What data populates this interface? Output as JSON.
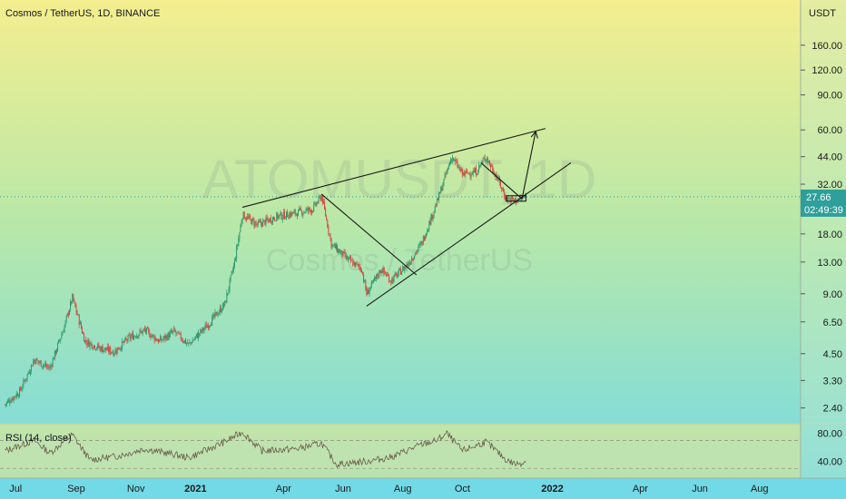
{
  "chart_data": {
    "type": "candlestick",
    "title": "Cosmos / TetherUS, 1D, BINANCE",
    "watermark": {
      "symbol": "ATOMUSDT, 1D",
      "name": "Cosmos / TetherUS"
    },
    "scale": "log",
    "currency": "USDT",
    "y_ticks": [
      "160.00",
      "120.00",
      "90.00",
      "60.00",
      "44.00",
      "32.00",
      "18.00",
      "13.00",
      "9.00",
      "6.50",
      "4.50",
      "3.30",
      "2.40"
    ],
    "x_ticks": [
      "Jul",
      "Sep",
      "Nov",
      "2021",
      "Apr",
      "Jun",
      "Aug",
      "Oct",
      "2022",
      "Apr",
      "Jun",
      "Aug"
    ],
    "x_tick_values": [
      "2020-07-01",
      "2020-09-01",
      "2020-11-01",
      "2021-01-01",
      "2021-04-01",
      "2021-06-01",
      "2021-08-01",
      "2021-10-01",
      "2022-01-01",
      "2022-04-01",
      "2022-06-01",
      "2022-08-01"
    ],
    "last_price": {
      "value": "27.66",
      "countdown": "02:49:39"
    },
    "price_path": [
      [
        "2020-06-20",
        2.5
      ],
      [
        "2020-07-05",
        2.9
      ],
      [
        "2020-07-20",
        4.2
      ],
      [
        "2020-08-05",
        3.8
      ],
      [
        "2020-08-20",
        6.2
      ],
      [
        "2020-08-28",
        8.6
      ],
      [
        "2020-09-10",
        5.2
      ],
      [
        "2020-09-25",
        4.8
      ],
      [
        "2020-10-10",
        4.6
      ],
      [
        "2020-10-25",
        5.4
      ],
      [
        "2020-11-10",
        5.9
      ],
      [
        "2020-11-25",
        5.2
      ],
      [
        "2020-12-10",
        5.8
      ],
      [
        "2020-12-25",
        5.0
      ],
      [
        "2021-01-15",
        6.4
      ],
      [
        "2021-01-31",
        8.0
      ],
      [
        "2021-02-10",
        13.0
      ],
      [
        "2021-02-18",
        22.5
      ],
      [
        "2021-03-05",
        20.0
      ],
      [
        "2021-03-25",
        22.0
      ],
      [
        "2021-04-15",
        23.0
      ],
      [
        "2021-05-01",
        24.0
      ],
      [
        "2021-05-10",
        28.0
      ],
      [
        "2021-05-20",
        16.0
      ],
      [
        "2021-06-05",
        13.5
      ],
      [
        "2021-06-20",
        12.0
      ],
      [
        "2021-06-25",
        9.0
      ],
      [
        "2021-07-10",
        12.0
      ],
      [
        "2021-07-20",
        10.5
      ],
      [
        "2021-08-05",
        12.5
      ],
      [
        "2021-08-20",
        16.0
      ],
      [
        "2021-09-05",
        26.0
      ],
      [
        "2021-09-20",
        44.0
      ],
      [
        "2021-10-01",
        36.0
      ],
      [
        "2021-10-15",
        37.0
      ],
      [
        "2021-10-25",
        44.0
      ],
      [
        "2021-11-05",
        35.0
      ],
      [
        "2021-11-15",
        27.0
      ],
      [
        "2021-11-25",
        26.5
      ],
      [
        "2021-12-05",
        27.66
      ]
    ],
    "rsi": {
      "label": "RSI (14, close)",
      "y_ticks": [
        "80.00",
        "40.00"
      ],
      "bands": [
        70,
        30
      ],
      "range": [
        20,
        90
      ],
      "values": [
        [
          "2020-06-20",
          55
        ],
        [
          "2020-07-20",
          70
        ],
        [
          "2020-08-05",
          52
        ],
        [
          "2020-08-28",
          78
        ],
        [
          "2020-09-15",
          42
        ],
        [
          "2020-10-15",
          48
        ],
        [
          "2020-11-10",
          58
        ],
        [
          "2020-12-10",
          50
        ],
        [
          "2020-12-25",
          45
        ],
        [
          "2021-01-31",
          68
        ],
        [
          "2021-02-18",
          82
        ],
        [
          "2021-03-10",
          55
        ],
        [
          "2021-04-15",
          58
        ],
        [
          "2021-05-10",
          66
        ],
        [
          "2021-05-25",
          36
        ],
        [
          "2021-06-25",
          40
        ],
        [
          "2021-07-20",
          46
        ],
        [
          "2021-08-20",
          64
        ],
        [
          "2021-09-05",
          70
        ],
        [
          "2021-09-15",
          80
        ],
        [
          "2021-10-01",
          55
        ],
        [
          "2021-10-25",
          68
        ],
        [
          "2021-11-15",
          42
        ],
        [
          "2021-11-25",
          36
        ],
        [
          "2021-12-05",
          40
        ]
      ]
    },
    "drawings": [
      {
        "type": "trend",
        "from": [
          "2021-02-18",
          24.5
        ],
        "to": [
          "2021-12-25",
          61.0
        ]
      },
      {
        "type": "trend",
        "from": [
          "2021-06-25",
          7.8
        ],
        "to": [
          "2022-01-20",
          41.0
        ]
      },
      {
        "type": "trend",
        "from": [
          "2021-05-10",
          28.5
        ],
        "to": [
          "2021-08-15",
          11.2
        ]
      },
      {
        "type": "trend",
        "from": [
          "2021-10-20",
          41.0
        ],
        "to": [
          "2021-12-01",
          27.0
        ]
      },
      {
        "type": "arrow",
        "from": [
          "2021-12-01",
          27.0
        ],
        "to": [
          "2021-12-15",
          59.0
        ]
      },
      {
        "type": "rectangle",
        "from": [
          "2021-11-15",
          28.0
        ],
        "to": [
          "2021-12-05",
          26.3
        ]
      }
    ],
    "colors": {
      "up": "#2e9a6d",
      "down": "#d6453d",
      "line": "#1a1a1a",
      "rsi": "#6b5c4a",
      "bg_top": "#f4ee8f",
      "bg_bottom": "#72d9e6",
      "price_label": "#2e9f9a",
      "grid": "#9fb3a0"
    }
  }
}
